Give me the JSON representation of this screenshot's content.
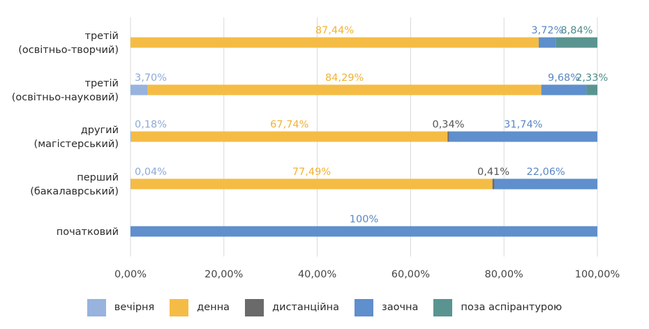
{
  "chart_data": {
    "type": "bar",
    "orientation": "horizontal",
    "stacked": true,
    "categories": [
      [
        "третій",
        "(освітньо-творчий)"
      ],
      [
        "третій",
        "(освітньо-науковий)"
      ],
      [
        "другий",
        "(магістерський)"
      ],
      [
        "перший",
        "(бакалаврський)"
      ],
      [
        "початковий"
      ]
    ],
    "series": [
      {
        "name": "вечірня",
        "color": "#97B3DE",
        "values": [
          0,
          3.7,
          0.18,
          0.04,
          0
        ],
        "labels": [
          "",
          "3,70%",
          "0,18%",
          "0,04%",
          ""
        ]
      },
      {
        "name": "денна",
        "color": "#F5BC45",
        "values": [
          87.44,
          84.29,
          67.74,
          77.49,
          0
        ],
        "labels": [
          "87,44%",
          "84,29%",
          "67,74%",
          "77,49%",
          ""
        ]
      },
      {
        "name": "дистанційна",
        "color": "#6A6A6A",
        "values": [
          0,
          0,
          0.34,
          0.41,
          0
        ],
        "labels": [
          "",
          "",
          "0,34%",
          "0,41%",
          ""
        ]
      },
      {
        "name": "заочна",
        "color": "#5F8FCC",
        "values": [
          3.72,
          9.68,
          31.74,
          22.06,
          100
        ],
        "labels": [
          "3,72%",
          "9,68%",
          "31,74%",
          "22,06%",
          "100%"
        ]
      },
      {
        "name": "поза аспірантурою",
        "color": "#5A9490",
        "values": [
          8.84,
          2.33,
          0,
          0,
          0
        ],
        "labels": [
          "8,84%",
          "2,33%",
          "",
          "",
          ""
        ]
      }
    ],
    "xlim": [
      0,
      100
    ],
    "x_ticks": [
      0,
      20,
      40,
      60,
      80,
      100
    ],
    "x_tick_labels": [
      "0,00%",
      "20,00%",
      "40,00%",
      "60,00%",
      "80,00%",
      "100,00%"
    ],
    "grid": "vertical",
    "legend_position": "bottom",
    "title": "",
    "xlabel": "",
    "ylabel": ""
  }
}
